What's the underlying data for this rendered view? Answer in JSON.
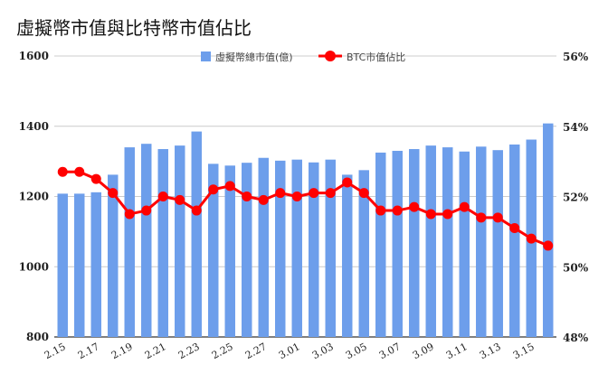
{
  "chart_data": {
    "type": "bar+line",
    "title": "虛擬幣市值與比特幣市值佔比",
    "categories": [
      "2.15",
      "2.16",
      "2.17",
      "2.18",
      "2.19",
      "2.20",
      "2.21",
      "2.22",
      "2.23",
      "2.24",
      "2.25",
      "2.26",
      "2.27",
      "2.28",
      "3.01",
      "3.02",
      "3.03",
      "3.04",
      "3.05",
      "3.06",
      "3.07",
      "3.08",
      "3.09",
      "3.10",
      "3.11",
      "3.12",
      "3.13",
      "3.14",
      "3.15",
      "3.16"
    ],
    "x_tick_labels": [
      "2.15",
      "2.17",
      "2.19",
      "2.21",
      "2.23",
      "2.25",
      "2.27",
      "3.01",
      "3.03",
      "3.05",
      "3.07",
      "3.09",
      "3.11",
      "3.13",
      "3.15"
    ],
    "series": [
      {
        "name": "虛擬幣總市值(億)",
        "type": "bar",
        "axis": "left",
        "color": "#6d9eeb",
        "values": [
          1208,
          1208,
          1212,
          1262,
          1340,
          1350,
          1335,
          1345,
          1385,
          1293,
          1288,
          1296,
          1310,
          1302,
          1305,
          1297,
          1305,
          1262,
          1275,
          1325,
          1330,
          1335,
          1345,
          1340,
          1328,
          1342,
          1332,
          1348,
          1362,
          1408
        ]
      },
      {
        "name": "BTC市值佔比",
        "type": "line",
        "axis": "right",
        "color": "#ff0000",
        "values": [
          52.7,
          52.7,
          52.5,
          52.1,
          51.5,
          51.6,
          52.0,
          51.9,
          51.6,
          52.2,
          52.3,
          52.0,
          51.9,
          52.1,
          52.0,
          52.1,
          52.1,
          52.4,
          52.1,
          51.6,
          51.6,
          51.7,
          51.5,
          51.5,
          51.7,
          51.4,
          51.4,
          51.1,
          50.8,
          50.6
        ]
      }
    ],
    "left_axis": {
      "min": 800,
      "max": 1600,
      "ticks": [
        "800",
        "1000",
        "1200",
        "1400",
        "1600"
      ]
    },
    "right_axis": {
      "min": 48,
      "max": 56,
      "ticks": [
        "48%",
        "50%",
        "52%",
        "54%",
        "56%"
      ]
    },
    "grid": true,
    "legend_position": "top"
  }
}
